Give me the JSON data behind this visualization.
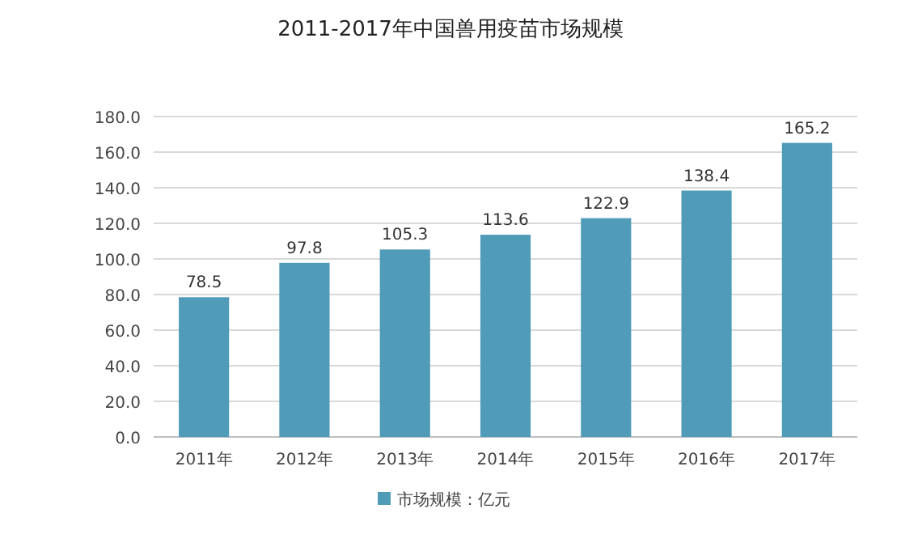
{
  "chart_data": {
    "type": "bar",
    "title": "2011-2017年中国兽用疫苗市场规模",
    "categories": [
      "2011年",
      "2012年",
      "2013年",
      "2014年",
      "2015年",
      "2016年",
      "2017年"
    ],
    "series": [
      {
        "name": "市场规模：亿元",
        "color": "#4f9bb8",
        "values": [
          78.5,
          97.8,
          105.3,
          113.6,
          122.9,
          138.4,
          165.2
        ]
      }
    ],
    "ylim": [
      0,
      180
    ],
    "yticks": [
      {
        "value": 0,
        "label": "0.0"
      },
      {
        "value": 20,
        "label": "20.0"
      },
      {
        "value": 40,
        "label": "40.0"
      },
      {
        "value": 60,
        "label": "60.0"
      },
      {
        "value": 80,
        "label": "80.0"
      },
      {
        "value": 100,
        "label": "100.0"
      },
      {
        "value": 120,
        "label": "120.0"
      },
      {
        "value": 140,
        "label": "140.0"
      },
      {
        "value": 160,
        "label": "160.0"
      },
      {
        "value": 180,
        "label": "180.0"
      }
    ],
    "grid": "y",
    "legend": "bottom",
    "data_labels": true
  }
}
